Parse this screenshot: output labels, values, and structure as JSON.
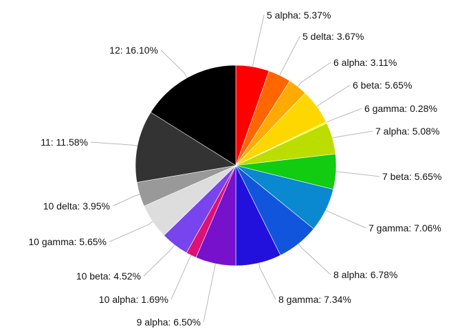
{
  "chart_data": {
    "type": "pie",
    "title": "",
    "start_angle_deg": 0,
    "direction": "clockwise",
    "legend": "none",
    "slices": [
      {
        "name": "5 alpha",
        "value": 5.37,
        "label": "5 alpha: 5.37%",
        "color": "#ff0000"
      },
      {
        "name": "5 delta",
        "value": 3.67,
        "label": "5 delta: 3.67%",
        "color": "#ff6600"
      },
      {
        "name": "6 alpha",
        "value": 3.11,
        "label": "6 alpha: 3.11%",
        "color": "#ffaa00"
      },
      {
        "name": "6 beta",
        "value": 5.65,
        "label": "6 beta: 5.65%",
        "color": "#ffd700"
      },
      {
        "name": "6 gamma",
        "value": 0.28,
        "label": "6 gamma: 0.28%",
        "color": "#ffff00"
      },
      {
        "name": "7 alpha",
        "value": 5.08,
        "label": "7 alpha: 5.08%",
        "color": "#bbdd00"
      },
      {
        "name": "7 beta",
        "value": 5.65,
        "label": "7 beta: 5.65%",
        "color": "#11cc11"
      },
      {
        "name": "7 gamma",
        "value": 7.06,
        "label": "7 gamma: 7.06%",
        "color": "#0a88d0"
      },
      {
        "name": "8 alpha",
        "value": 6.78,
        "label": "8 alpha: 6.78%",
        "color": "#1155dd"
      },
      {
        "name": "8 gamma",
        "value": 7.34,
        "label": "8 gamma: 7.34%",
        "color": "#2211dd"
      },
      {
        "name": "9 alpha",
        "value": 6.5,
        "label": "9 alpha: 6.50%",
        "color": "#7711cc"
      },
      {
        "name": "10 alpha",
        "value": 1.69,
        "label": "10 alpha: 1.69%",
        "color": "#dd1177"
      },
      {
        "name": "10 beta",
        "value": 4.52,
        "label": "10 beta: 4.52%",
        "color": "#7744ee"
      },
      {
        "name": "10 gamma",
        "value": 5.65,
        "label": "10 gamma: 5.65%",
        "color": "#dddddd"
      },
      {
        "name": "10 delta",
        "value": 3.95,
        "label": "10 delta: 3.95%",
        "color": "#999999"
      },
      {
        "name": "11",
        "value": 11.58,
        "label": "11: 11.58%",
        "color": "#333333"
      },
      {
        "name": "12",
        "value": 16.1,
        "label": "12: 16.10%",
        "color": "#000000"
      }
    ]
  }
}
